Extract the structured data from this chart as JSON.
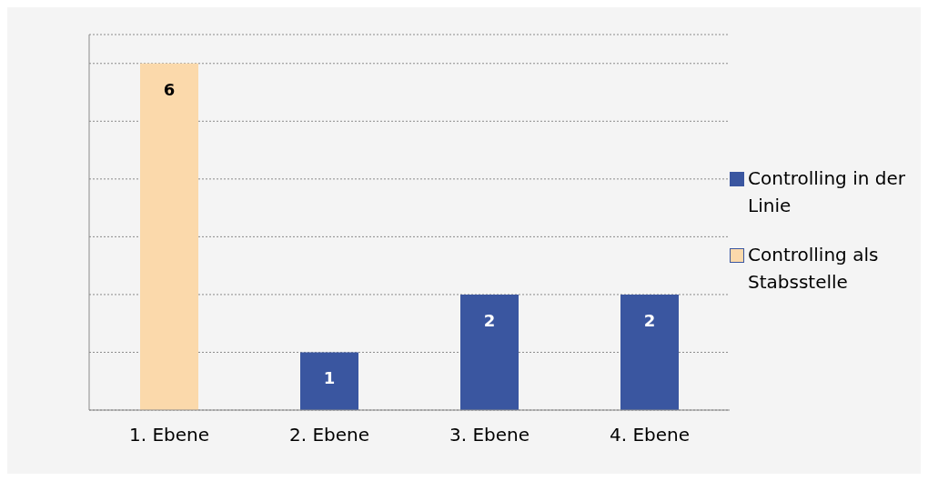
{
  "chart_data": {
    "type": "bar",
    "categories": [
      "1. Ebene",
      "2. Ebene",
      "3. Ebene",
      "4. Ebene"
    ],
    "stacked": true,
    "series": [
      {
        "name": "Controlling in der Linie",
        "color": "#3a56a0",
        "values": [
          null,
          1,
          2,
          2
        ]
      },
      {
        "name": "Controlling als Stabsstelle",
        "color": "#fbd9ab",
        "values": [
          6,
          null,
          null,
          null
        ]
      }
    ],
    "ylim": [
      0,
      6.5
    ],
    "yticks": [
      {
        "value": 0,
        "label": null
      },
      {
        "value": 1,
        "label": null
      },
      {
        "value": 2,
        "label": null
      },
      {
        "value": 3,
        "label": null
      },
      {
        "value": 4,
        "label": null
      },
      {
        "value": 5,
        "label": null
      },
      {
        "value": 6,
        "label": null
      }
    ],
    "tick_labels": "x",
    "grid": "y",
    "legend": "right",
    "data_labels": true
  }
}
